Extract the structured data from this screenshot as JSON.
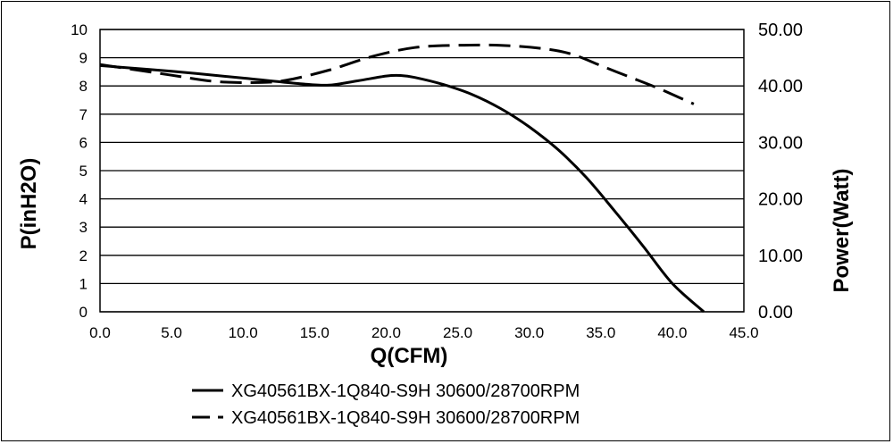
{
  "chart_data": {
    "type": "line",
    "xlabel": "Q(CFM)",
    "ylabel_left": "P(inH2O)",
    "ylabel_right": "Power(Watt)",
    "xlim": [
      0,
      45
    ],
    "ylim_left": [
      0,
      10
    ],
    "ylim_right": [
      0,
      50
    ],
    "x_ticks": [
      "0.0",
      "5.0",
      "10.0",
      "15.0",
      "20.0",
      "25.0",
      "30.0",
      "35.0",
      "40.0",
      "45.0"
    ],
    "y_ticks_left": [
      "0",
      "1",
      "2",
      "3",
      "4",
      "5",
      "6",
      "7",
      "8",
      "9",
      "10"
    ],
    "y_ticks_right": [
      "0.00",
      "10.00",
      "20.00",
      "30.00",
      "40.00",
      "50.00"
    ],
    "grid": "horizontal",
    "legend_position": "bottom",
    "series": [
      {
        "name": "XG40561BX-1Q840-S9H 30600/28700RPM",
        "axis": "left",
        "style": "solid",
        "x": [
          0,
          5,
          10,
          14,
          16,
          18,
          20,
          21,
          22,
          24,
          26,
          28,
          30,
          32,
          34,
          36,
          38,
          40,
          42.2
        ],
        "y": [
          8.72,
          8.52,
          8.28,
          8.08,
          8.03,
          8.18,
          8.35,
          8.37,
          8.3,
          8.05,
          7.7,
          7.2,
          6.55,
          5.75,
          4.75,
          3.55,
          2.3,
          1.0,
          0
        ]
      },
      {
        "name": "XG40561BX-1Q840-S9H 30600/28700RPM",
        "axis": "right",
        "style": "dashed",
        "x": [
          0,
          5,
          8,
          11,
          13,
          16,
          19,
          22,
          25,
          28,
          31,
          33,
          35,
          37,
          39,
          41.5
        ],
        "y": [
          43.8,
          41.9,
          40.8,
          40.6,
          41.0,
          42.8,
          45.2,
          46.8,
          47.2,
          47.2,
          46.6,
          45.6,
          43.6,
          41.6,
          39.6,
          36.8
        ]
      }
    ]
  }
}
